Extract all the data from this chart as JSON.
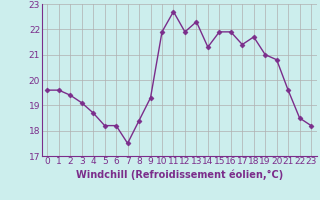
{
  "x": [
    0,
    1,
    2,
    3,
    4,
    5,
    6,
    7,
    8,
    9,
    10,
    11,
    12,
    13,
    14,
    15,
    16,
    17,
    18,
    19,
    20,
    21,
    22,
    23
  ],
  "y": [
    19.6,
    19.6,
    19.4,
    19.1,
    18.7,
    18.2,
    18.2,
    17.5,
    18.4,
    19.3,
    21.9,
    22.7,
    21.9,
    22.3,
    21.3,
    21.9,
    21.9,
    21.4,
    21.7,
    21.0,
    20.8,
    19.6,
    18.5,
    18.2
  ],
  "line_color": "#7b2d8b",
  "marker": "D",
  "markersize": 2.5,
  "linewidth": 1.0,
  "bg_color": "#cceeed",
  "grid_color": "#b0b0b0",
  "xlabel": "Windchill (Refroidissement éolien,°C)",
  "xlabel_fontsize": 7,
  "tick_fontsize": 6.5,
  "ylim": [
    17,
    23
  ],
  "xlim": [
    -0.5,
    23.5
  ],
  "yticks": [
    17,
    18,
    19,
    20,
    21,
    22,
    23
  ],
  "xticks": [
    0,
    1,
    2,
    3,
    4,
    5,
    6,
    7,
    8,
    9,
    10,
    11,
    12,
    13,
    14,
    15,
    16,
    17,
    18,
    19,
    20,
    21,
    22,
    23
  ]
}
